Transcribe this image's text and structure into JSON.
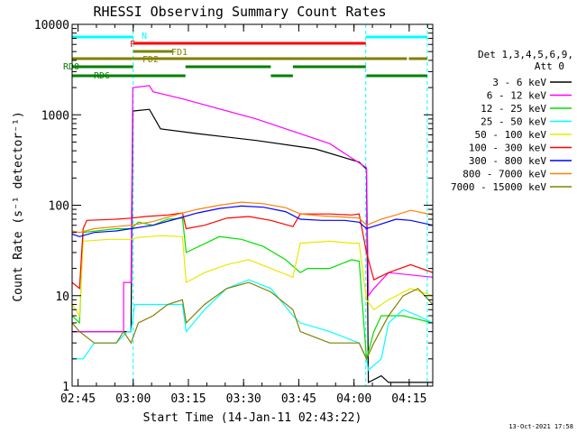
{
  "chart_data": {
    "type": "line",
    "title": "RHESSI Observing Summary Count Rates",
    "xlabel": "Start Time (14-Jan-11 02:43:22)",
    "ylabel": "Count Rate (s⁻¹ detector⁻¹)",
    "yscale": "log",
    "ylim": [
      1,
      10000
    ],
    "xlim_minutes": [
      0,
      98
    ],
    "x_unit": "minutes after 02:43:22",
    "x_ticks": [
      {
        "label": "02:45",
        "t": 1.6
      },
      {
        "label": "03:00",
        "t": 16.6
      },
      {
        "label": "03:15",
        "t": 31.6
      },
      {
        "label": "03:30",
        "t": 46.6
      },
      {
        "label": "03:45",
        "t": 61.6
      },
      {
        "label": "04:00",
        "t": 76.6
      },
      {
        "label": "04:15",
        "t": 91.6
      }
    ],
    "y_ticks": [
      {
        "label": "1",
        "v": 1
      },
      {
        "label": "10",
        "v": 10
      },
      {
        "label": "100",
        "v": 100
      },
      {
        "label": "1000",
        "v": 1000
      },
      {
        "label": "10000",
        "v": 10000
      }
    ],
    "legend_title": "Det 1,3,4,5,6,9,",
    "legend_subtitle": "Att 0",
    "legend_position": "right",
    "series": [
      {
        "name": "3 - 6 keV",
        "color": "#000000",
        "points": [
          [
            0,
            4
          ],
          [
            14,
            4
          ],
          [
            16,
            4
          ],
          [
            16.5,
            1100
          ],
          [
            21,
            1150
          ],
          [
            24,
            700
          ],
          [
            34,
            620
          ],
          [
            50,
            520
          ],
          [
            66,
            420
          ],
          [
            78,
            300
          ],
          [
            80,
            250
          ],
          [
            80.5,
            1.1
          ],
          [
            84,
            1.3
          ],
          [
            86,
            1.1
          ],
          [
            98,
            1.1
          ]
        ]
      },
      {
        "name": "6 - 12 keV",
        "color": "#ff00ff",
        "points": [
          [
            0,
            4
          ],
          [
            14,
            4
          ],
          [
            14,
            14
          ],
          [
            16,
            14
          ],
          [
            16.5,
            2000
          ],
          [
            21,
            2100
          ],
          [
            22,
            1800
          ],
          [
            30,
            1500
          ],
          [
            50,
            900
          ],
          [
            70,
            480
          ],
          [
            80,
            260
          ],
          [
            80.5,
            10
          ],
          [
            82,
            12
          ],
          [
            86,
            18
          ],
          [
            98,
            16
          ]
        ]
      },
      {
        "name": "12 - 25 keV",
        "color": "#00e000",
        "points": [
          [
            0,
            6
          ],
          [
            2,
            5
          ],
          [
            3,
            50
          ],
          [
            12,
            55
          ],
          [
            16,
            55
          ],
          [
            18,
            65
          ],
          [
            22,
            60
          ],
          [
            26,
            70
          ],
          [
            30,
            72
          ],
          [
            31,
            30
          ],
          [
            40,
            45
          ],
          [
            46,
            42
          ],
          [
            52,
            35
          ],
          [
            58,
            25
          ],
          [
            62,
            18
          ],
          [
            64,
            20
          ],
          [
            70,
            20
          ],
          [
            76,
            25
          ],
          [
            78,
            24
          ],
          [
            80,
            2
          ],
          [
            82,
            4
          ],
          [
            84,
            6
          ],
          [
            90,
            6
          ],
          [
            98,
            5
          ]
        ]
      },
      {
        "name": "25 - 50 keV",
        "color": "#00ffff",
        "points": [
          [
            0,
            2
          ],
          [
            2,
            2
          ],
          [
            3,
            2
          ],
          [
            6,
            3
          ],
          [
            12,
            3
          ],
          [
            15,
            4
          ],
          [
            16,
            4
          ],
          [
            17,
            8
          ],
          [
            25,
            8
          ],
          [
            30,
            8
          ],
          [
            31,
            4
          ],
          [
            36,
            7
          ],
          [
            42,
            12
          ],
          [
            48,
            15
          ],
          [
            54,
            12
          ],
          [
            60,
            6
          ],
          [
            62,
            5
          ],
          [
            70,
            4
          ],
          [
            78,
            3
          ],
          [
            80,
            2
          ],
          [
            80.5,
            1.5
          ],
          [
            84,
            2
          ],
          [
            86,
            5
          ],
          [
            90,
            7
          ],
          [
            94,
            6
          ],
          [
            98,
            5
          ]
        ]
      },
      {
        "name": "50 - 100 keV",
        "color": "#e8e800",
        "points": [
          [
            0,
            8
          ],
          [
            2,
            6
          ],
          [
            3,
            40
          ],
          [
            10,
            42
          ],
          [
            16,
            42
          ],
          [
            18,
            44
          ],
          [
            24,
            46
          ],
          [
            30,
            45
          ],
          [
            31,
            14
          ],
          [
            36,
            18
          ],
          [
            42,
            22
          ],
          [
            48,
            25
          ],
          [
            54,
            20
          ],
          [
            60,
            16
          ],
          [
            62,
            38
          ],
          [
            70,
            40
          ],
          [
            76,
            38
          ],
          [
            78,
            38
          ],
          [
            80,
            9
          ],
          [
            82,
            7
          ],
          [
            86,
            9
          ],
          [
            92,
            12
          ],
          [
            98,
            10
          ]
        ]
      },
      {
        "name": "100 - 300 keV",
        "color": "#ff0000",
        "points": [
          [
            0,
            14
          ],
          [
            2,
            12
          ],
          [
            3,
            55
          ],
          [
            4,
            68
          ],
          [
            12,
            70
          ],
          [
            16,
            72
          ],
          [
            20,
            75
          ],
          [
            26,
            78
          ],
          [
            30,
            82
          ],
          [
            31,
            55
          ],
          [
            36,
            60
          ],
          [
            42,
            72
          ],
          [
            48,
            75
          ],
          [
            54,
            68
          ],
          [
            60,
            58
          ],
          [
            62,
            80
          ],
          [
            70,
            80
          ],
          [
            76,
            78
          ],
          [
            78,
            80
          ],
          [
            80,
            30
          ],
          [
            82,
            15
          ],
          [
            86,
            18
          ],
          [
            92,
            22
          ],
          [
            98,
            18
          ]
        ]
      },
      {
        "name": "300 - 800 keV",
        "color": "#0000ff",
        "points": [
          [
            0,
            48
          ],
          [
            2,
            45
          ],
          [
            6,
            50
          ],
          [
            12,
            52
          ],
          [
            16,
            55
          ],
          [
            22,
            60
          ],
          [
            28,
            70
          ],
          [
            34,
            82
          ],
          [
            40,
            92
          ],
          [
            46,
            98
          ],
          [
            52,
            95
          ],
          [
            58,
            85
          ],
          [
            62,
            70
          ],
          [
            68,
            68
          ],
          [
            74,
            68
          ],
          [
            78,
            65
          ],
          [
            80,
            55
          ],
          [
            84,
            62
          ],
          [
            88,
            70
          ],
          [
            92,
            68
          ],
          [
            98,
            60
          ]
        ]
      },
      {
        "name": "800 - 7000 keV",
        "color": "#ff8000",
        "points": [
          [
            0,
            52
          ],
          [
            2,
            50
          ],
          [
            6,
            55
          ],
          [
            12,
            58
          ],
          [
            16,
            60
          ],
          [
            22,
            66
          ],
          [
            28,
            78
          ],
          [
            34,
            90
          ],
          [
            40,
            100
          ],
          [
            46,
            108
          ],
          [
            52,
            104
          ],
          [
            58,
            94
          ],
          [
            62,
            80
          ],
          [
            68,
            76
          ],
          [
            74,
            74
          ],
          [
            78,
            72
          ],
          [
            80,
            60
          ],
          [
            84,
            70
          ],
          [
            88,
            78
          ],
          [
            92,
            88
          ],
          [
            98,
            78
          ]
        ]
      },
      {
        "name": "7000 - 15000 keV",
        "color": "#808000",
        "points": [
          [
            0,
            5
          ],
          [
            2,
            4
          ],
          [
            6,
            3
          ],
          [
            12,
            3
          ],
          [
            14,
            4
          ],
          [
            16,
            3
          ],
          [
            18,
            5
          ],
          [
            22,
            6
          ],
          [
            26,
            8
          ],
          [
            30,
            9
          ],
          [
            31,
            5
          ],
          [
            36,
            8
          ],
          [
            42,
            12
          ],
          [
            48,
            14
          ],
          [
            54,
            11
          ],
          [
            60,
            7
          ],
          [
            62,
            4
          ],
          [
            70,
            3
          ],
          [
            78,
            3
          ],
          [
            80,
            2
          ],
          [
            82,
            3
          ],
          [
            86,
            6
          ],
          [
            90,
            10
          ],
          [
            94,
            12
          ],
          [
            98,
            8
          ]
        ]
      }
    ],
    "state_bars": [
      {
        "name": "N",
        "color": "#00ffff",
        "segments": [
          [
            0,
            16.6
          ],
          [
            79.8,
            96.5
          ]
        ]
      },
      {
        "name": "F",
        "color": "#ff0000",
        "segments": [
          [
            16.6,
            79.8
          ]
        ]
      },
      {
        "name": "FD1",
        "color": "#808000",
        "segments": [
          [
            16.6,
            27.5
          ]
        ]
      },
      {
        "name": "FD2",
        "color": "#808000",
        "segments": [
          [
            0,
            16.6
          ],
          [
            16.6,
            91
          ],
          [
            91.5,
            96.5
          ]
        ]
      },
      {
        "name": "RD0",
        "color": "#008000",
        "segments": [
          [
            0,
            16.6
          ],
          [
            30.8,
            54
          ],
          [
            60,
            79.8
          ]
        ]
      },
      {
        "name": "RD6",
        "color": "#008000",
        "segments": [
          [
            0,
            16.6
          ],
          [
            16.6,
            30.8
          ],
          [
            54,
            60
          ],
          [
            80,
            96.5
          ]
        ]
      }
    ],
    "vertical_markers": [
      {
        "t": 16.6,
        "color": "#00ffff"
      },
      {
        "t": 79.8,
        "color": "#00ffff"
      },
      {
        "t": 96.5,
        "color": "#00ffff"
      }
    ],
    "footer_date": "13-Oct-2021 17:58"
  }
}
